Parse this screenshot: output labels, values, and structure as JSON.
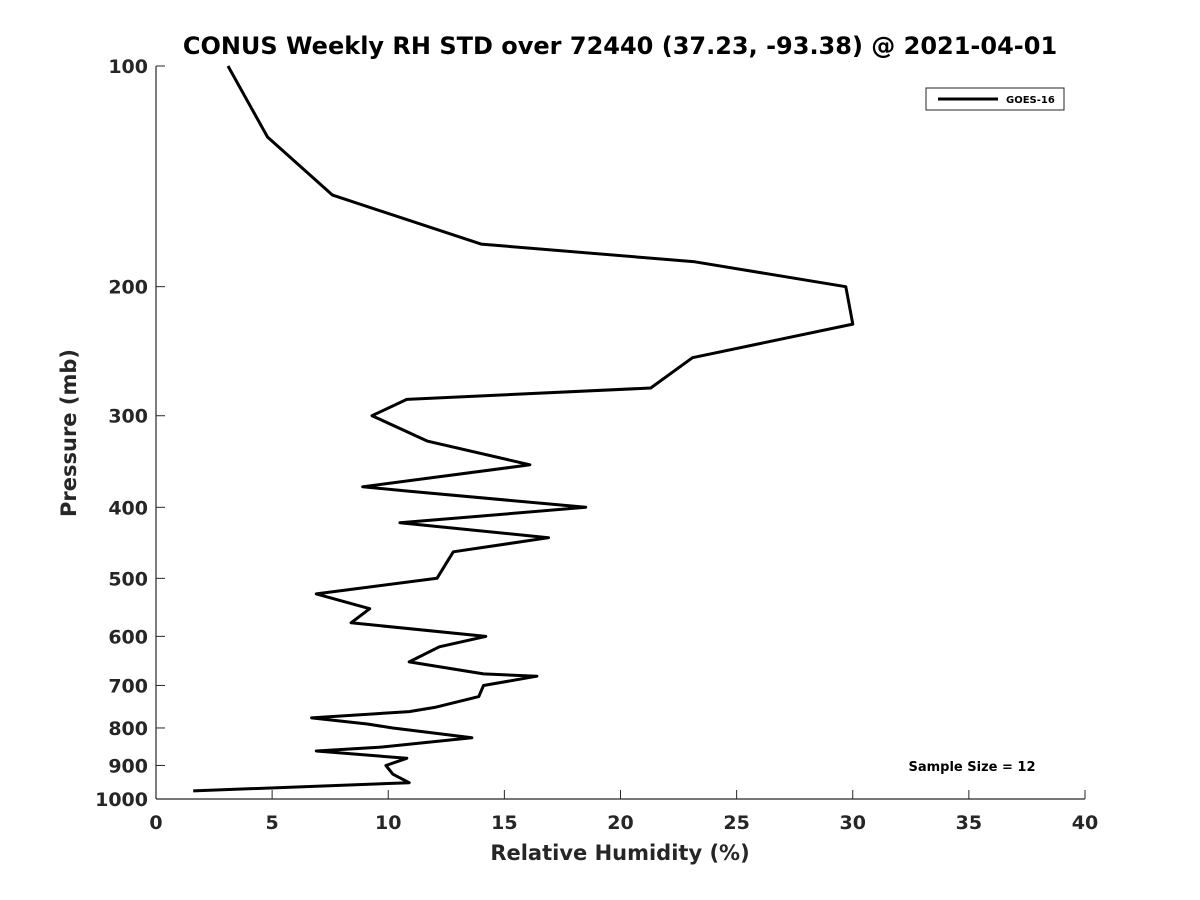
{
  "chart_data": {
    "type": "line",
    "title": "CONUS Weekly RH STD over 72440 (37.23, -93.38) @ 2021-04-01",
    "xlabel": "Relative Humidity (%)",
    "ylabel": "Pressure (mb)",
    "xlim": [
      0,
      40
    ],
    "ylim": [
      1000,
      100
    ],
    "yscale": "log",
    "xticks": [
      0,
      5,
      10,
      15,
      20,
      25,
      30,
      35,
      40
    ],
    "yticks": [
      100,
      200,
      300,
      400,
      500,
      600,
      700,
      800,
      900,
      1000
    ],
    "grid": false,
    "legend_position": "top-right",
    "line_color": "#000000",
    "series": [
      {
        "name": "GOES-16",
        "points": [
          [
            3.1,
            100
          ],
          [
            4.8,
            125
          ],
          [
            7.6,
            150
          ],
          [
            14.0,
            175
          ],
          [
            23.2,
            185
          ],
          [
            29.7,
            200
          ],
          [
            30.0,
            225
          ],
          [
            23.1,
            250
          ],
          [
            21.3,
            275
          ],
          [
            10.8,
            285
          ],
          [
            9.3,
            300
          ],
          [
            11.7,
            325
          ],
          [
            16.1,
            350
          ],
          [
            8.9,
            375
          ],
          [
            10.8,
            380
          ],
          [
            18.5,
            400
          ],
          [
            10.5,
            420
          ],
          [
            16.9,
            440
          ],
          [
            12.8,
            460
          ],
          [
            12.1,
            500
          ],
          [
            6.9,
            525
          ],
          [
            9.2,
            550
          ],
          [
            8.4,
            575
          ],
          [
            14.2,
            600
          ],
          [
            12.2,
            620
          ],
          [
            10.9,
            650
          ],
          [
            14.1,
            675
          ],
          [
            16.4,
            680
          ],
          [
            14.1,
            700
          ],
          [
            13.9,
            725
          ],
          [
            12.0,
            750
          ],
          [
            10.9,
            760
          ],
          [
            6.7,
            775
          ],
          [
            9.1,
            790
          ],
          [
            10.2,
            800
          ],
          [
            13.6,
            825
          ],
          [
            9.6,
            850
          ],
          [
            6.9,
            860
          ],
          [
            10.8,
            880
          ],
          [
            9.9,
            900
          ],
          [
            10.2,
            925
          ],
          [
            10.9,
            950
          ],
          [
            1.6,
            975
          ]
        ]
      }
    ],
    "annotation": "Sample Size = 12"
  }
}
